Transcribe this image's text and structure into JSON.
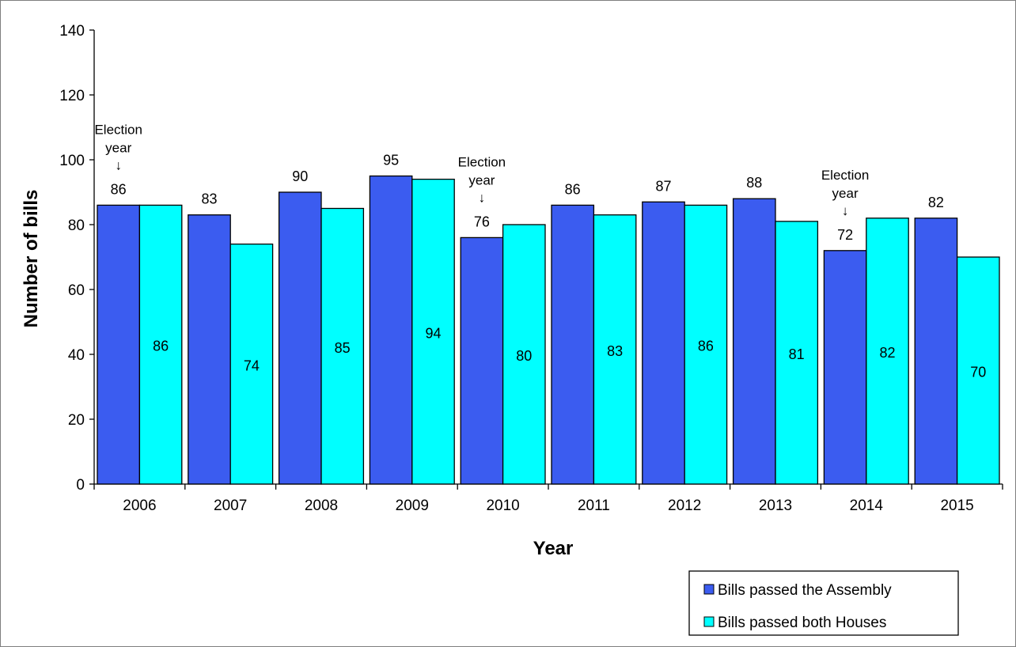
{
  "chart_data": {
    "type": "bar",
    "title": "",
    "xlabel": "Year",
    "ylabel": "Number of bills",
    "ylim": [
      0,
      140
    ],
    "yticks": [
      0,
      20,
      40,
      60,
      80,
      100,
      120,
      140
    ],
    "grid": false,
    "legend_position": "bottom-right",
    "categories": [
      "2006",
      "2007",
      "2008",
      "2009",
      "2010",
      "2011",
      "2012",
      "2013",
      "2014",
      "2015"
    ],
    "series": [
      {
        "name": "Bills passed the Assembly",
        "color": "#3b5cf0",
        "values": [
          86,
          83,
          90,
          95,
          76,
          86,
          87,
          88,
          72,
          82
        ]
      },
      {
        "name": "Bills passed both Houses",
        "color": "#00ffff",
        "values": [
          86,
          74,
          85,
          94,
          80,
          83,
          86,
          81,
          82,
          70
        ]
      }
    ],
    "annotations": [
      {
        "category": "2006",
        "text": [
          "Election",
          "year"
        ],
        "arrow": "↓"
      },
      {
        "category": "2010",
        "text": [
          "Election",
          "year"
        ],
        "arrow": "↓"
      },
      {
        "category": "2014",
        "text": [
          "Election",
          "year"
        ],
        "arrow": "↓"
      }
    ]
  }
}
